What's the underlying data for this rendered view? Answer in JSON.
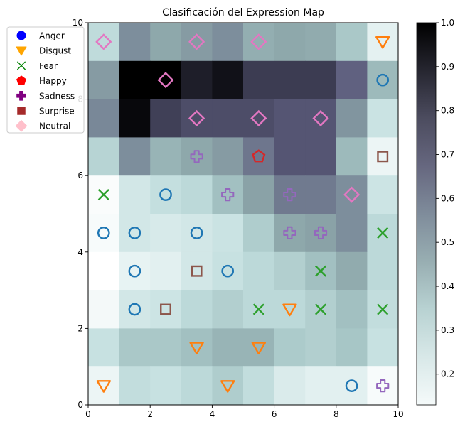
{
  "chart_data": {
    "type": "heatmap",
    "title": "Clasificación del Expression Map",
    "xlim": [
      0,
      10
    ],
    "ylim": [
      0,
      10
    ],
    "x_ticks": [
      "0",
      "2",
      "4",
      "6",
      "8",
      "10"
    ],
    "y_ticks": [
      "0",
      "2",
      "4",
      "6",
      "8",
      "10"
    ],
    "grid": false,
    "colormap": "bone_r",
    "colorbar": {
      "range": [
        0.13,
        1.0
      ],
      "ticks": [
        "0.2",
        "0.3",
        "0.4",
        "0.5",
        "0.6",
        "0.7",
        "0.8",
        "0.9",
        "1.0"
      ]
    },
    "cell_values_row_y9_to_y0": [
      [
        0.37,
        0.64,
        0.56,
        0.6,
        0.64,
        0.54,
        0.56,
        0.55,
        0.45,
        0.23
      ],
      [
        0.6,
        1.0,
        1.0,
        0.93,
        0.96,
        0.86,
        0.86,
        0.86,
        0.77,
        0.5
      ],
      [
        0.66,
        0.98,
        0.85,
        0.82,
        0.82,
        0.82,
        0.8,
        0.8,
        0.62,
        0.33
      ],
      [
        0.4,
        0.64,
        0.52,
        0.56,
        0.6,
        0.71,
        0.8,
        0.8,
        0.5,
        0.2
      ],
      [
        0.15,
        0.3,
        0.35,
        0.38,
        0.48,
        0.58,
        0.7,
        0.7,
        0.64,
        0.32
      ],
      [
        0.16,
        0.3,
        0.28,
        0.3,
        0.33,
        0.43,
        0.56,
        0.58,
        0.64,
        0.38
      ],
      [
        0.13,
        0.22,
        0.24,
        0.3,
        0.34,
        0.38,
        0.42,
        0.48,
        0.55,
        0.38
      ],
      [
        0.17,
        0.3,
        0.32,
        0.38,
        0.42,
        0.38,
        0.38,
        0.42,
        0.48,
        0.36
      ],
      [
        0.34,
        0.45,
        0.45,
        0.48,
        0.52,
        0.52,
        0.44,
        0.42,
        0.46,
        0.34
      ],
      [
        0.2,
        0.36,
        0.34,
        0.38,
        0.43,
        0.36,
        0.27,
        0.24,
        0.24,
        0.16
      ]
    ],
    "legend": {
      "placement": "upper-left, outside the axes",
      "entries": [
        {
          "label": "Anger",
          "marker": "circle",
          "color": "#0000ff"
        },
        {
          "label": "Disgust",
          "marker": "triangle-down",
          "color": "#ffa500"
        },
        {
          "label": "Fear",
          "marker": "x",
          "color": "#008000"
        },
        {
          "label": "Happy",
          "marker": "pentagon",
          "color": "#ff0000"
        },
        {
          "label": "Sadness",
          "marker": "plus",
          "color": "#800080"
        },
        {
          "label": "Surprise",
          "marker": "square",
          "color": "#a52a2a"
        },
        {
          "label": "Neutral",
          "marker": "diamond",
          "color": "#ffc0cb"
        }
      ]
    },
    "marker_colors": {
      "Anger": "#1f77b4",
      "Disgust": "#ff7f0e",
      "Fear": "#2ca02c",
      "Happy": "#d62728",
      "Sadness": "#9467bd",
      "Surprise": "#8c564b",
      "Neutral": "#e377c2"
    },
    "points": [
      {
        "x": 0.5,
        "y": 9.5,
        "class": "Neutral"
      },
      {
        "x": 3.5,
        "y": 9.5,
        "class": "Neutral"
      },
      {
        "x": 5.5,
        "y": 9.5,
        "class": "Neutral"
      },
      {
        "x": 9.5,
        "y": 9.5,
        "class": "Disgust"
      },
      {
        "x": 2.5,
        "y": 8.5,
        "class": "Neutral"
      },
      {
        "x": 9.5,
        "y": 8.5,
        "class": "Anger"
      },
      {
        "x": 3.5,
        "y": 7.5,
        "class": "Neutral"
      },
      {
        "x": 5.5,
        "y": 7.5,
        "class": "Neutral"
      },
      {
        "x": 7.5,
        "y": 7.5,
        "class": "Neutral"
      },
      {
        "x": 3.5,
        "y": 6.5,
        "class": "Sadness"
      },
      {
        "x": 5.5,
        "y": 6.5,
        "class": "Happy"
      },
      {
        "x": 9.5,
        "y": 6.5,
        "class": "Surprise"
      },
      {
        "x": 0.5,
        "y": 5.5,
        "class": "Fear"
      },
      {
        "x": 2.5,
        "y": 5.5,
        "class": "Anger"
      },
      {
        "x": 4.5,
        "y": 5.5,
        "class": "Sadness"
      },
      {
        "x": 6.5,
        "y": 5.5,
        "class": "Sadness"
      },
      {
        "x": 8.5,
        "y": 5.5,
        "class": "Neutral"
      },
      {
        "x": 0.5,
        "y": 4.5,
        "class": "Anger"
      },
      {
        "x": 1.5,
        "y": 4.5,
        "class": "Anger"
      },
      {
        "x": 3.5,
        "y": 4.5,
        "class": "Anger"
      },
      {
        "x": 6.5,
        "y": 4.5,
        "class": "Sadness"
      },
      {
        "x": 7.5,
        "y": 4.5,
        "class": "Sadness"
      },
      {
        "x": 9.5,
        "y": 4.5,
        "class": "Fear"
      },
      {
        "x": 1.5,
        "y": 3.5,
        "class": "Anger"
      },
      {
        "x": 3.5,
        "y": 3.5,
        "class": "Surprise"
      },
      {
        "x": 4.5,
        "y": 3.5,
        "class": "Anger"
      },
      {
        "x": 7.5,
        "y": 3.5,
        "class": "Fear"
      },
      {
        "x": 1.5,
        "y": 2.5,
        "class": "Anger"
      },
      {
        "x": 2.5,
        "y": 2.5,
        "class": "Surprise"
      },
      {
        "x": 5.5,
        "y": 2.5,
        "class": "Fear"
      },
      {
        "x": 6.5,
        "y": 2.5,
        "class": "Disgust"
      },
      {
        "x": 7.5,
        "y": 2.5,
        "class": "Fear"
      },
      {
        "x": 9.5,
        "y": 2.5,
        "class": "Fear"
      },
      {
        "x": 3.5,
        "y": 1.5,
        "class": "Disgust"
      },
      {
        "x": 5.5,
        "y": 1.5,
        "class": "Disgust"
      },
      {
        "x": 0.5,
        "y": 0.5,
        "class": "Disgust"
      },
      {
        "x": 4.5,
        "y": 0.5,
        "class": "Disgust"
      },
      {
        "x": 8.5,
        "y": 0.5,
        "class": "Anger"
      },
      {
        "x": 9.5,
        "y": 0.5,
        "class": "Sadness"
      }
    ]
  }
}
